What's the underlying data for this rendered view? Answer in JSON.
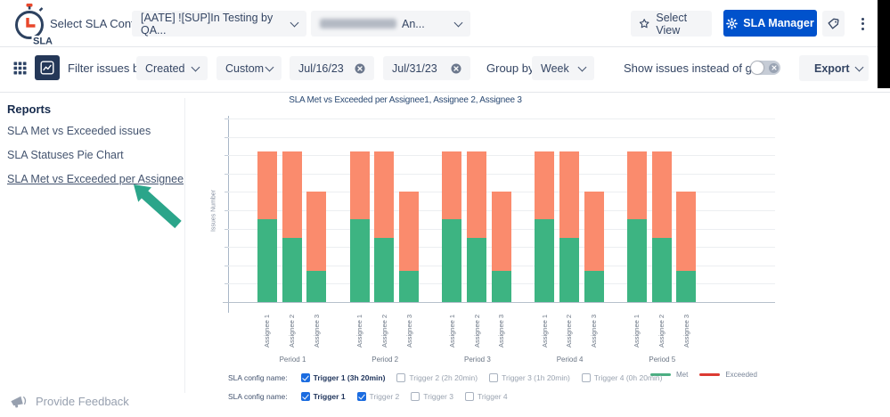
{
  "header": {
    "logo_text": "SLA",
    "select_config_label": "Select SLA Config:",
    "config_dropdown_1": "[AATE] ![SUP]In Testing by QA...",
    "config_dropdown_2_suffix": "An...",
    "select_view_label": "Select View",
    "sla_manager_label": "SLA Manager",
    "brand_blue": "#0052CC"
  },
  "toolbar": {
    "filter_label": "Filter issues by:",
    "created_value": "Created",
    "range_value": "Custom",
    "date_from": "Jul/16/23",
    "date_to": "Jul/31/23",
    "group_by_label": "Group by",
    "group_by_value": "Week",
    "toggle_label": "Show issues instead of goals",
    "toggle_state": "off",
    "export_label": "Export"
  },
  "sidebar": {
    "title": "Reports",
    "items": [
      {
        "label": "SLA Met vs Exceeded issues",
        "active": false
      },
      {
        "label": "SLA Statuses Pie Chart",
        "active": false
      },
      {
        "label": "SLA Met vs Exceeded per Assignee",
        "active": true
      }
    ],
    "annotation_arrow_color": "#2BA58A",
    "feedback_label": "Provide Feedback"
  },
  "chart_data": {
    "type": "bar",
    "stacked": true,
    "title": "SLA Met vs Exceeded per Assignee1, Assignee 2, Assignee 3",
    "xlabel": "",
    "ylabel": "Issues Number",
    "y_tick_labels_visible": false,
    "ylim": [
      0,
      10
    ],
    "grid": true,
    "groups": [
      "Period 1",
      "Period 2",
      "Period 3",
      "Period 4",
      "Period 5"
    ],
    "bar_labels": [
      "Assignee 1",
      "Assignee 2",
      "Assignee 3"
    ],
    "series": [
      {
        "name": "Met",
        "color": "#3DB482",
        "values": [
          [
            4.5,
            3.5,
            1.7
          ],
          [
            4.5,
            3.5,
            1.7
          ],
          [
            4.5,
            3.5,
            1.7
          ],
          [
            4.5,
            3.5,
            1.7
          ],
          [
            4.5,
            3.5,
            1.7
          ]
        ]
      },
      {
        "name": "Exceeded",
        "color": "#FA8B6D",
        "values": [
          [
            3.7,
            4.7,
            4.3
          ],
          [
            3.7,
            4.7,
            4.3
          ],
          [
            3.7,
            4.7,
            4.3
          ],
          [
            3.7,
            4.7,
            4.3
          ],
          [
            3.7,
            4.7,
            4.3
          ]
        ]
      }
    ],
    "legend_position": "bottom-right",
    "legend": [
      {
        "label": "Met",
        "color": "#4CAE82"
      },
      {
        "label": "Exceeded",
        "color": "#DC3A32"
      }
    ]
  },
  "sla_config_filters": {
    "rows": [
      {
        "label": "SLA config name:",
        "options": [
          {
            "label": "Trigger 1 (3h 20min)",
            "checked": true,
            "active": true
          },
          {
            "label": "Trigger 2 (2h 20min)",
            "checked": false,
            "active": false
          },
          {
            "label": "Trigger 3 (1h 20min)",
            "checked": false,
            "active": false
          },
          {
            "label": "Trigger 4 (0h 20min)",
            "checked": false,
            "active": false
          }
        ]
      },
      {
        "label": "SLA config name:",
        "options": [
          {
            "label": "Trigger 1",
            "checked": true,
            "active": true
          },
          {
            "label": "Trigger 2",
            "checked": true,
            "active": false
          },
          {
            "label": "Trigger 3",
            "checked": false,
            "active": false
          },
          {
            "label": "Trigger 4",
            "checked": false,
            "active": false
          }
        ]
      }
    ]
  }
}
